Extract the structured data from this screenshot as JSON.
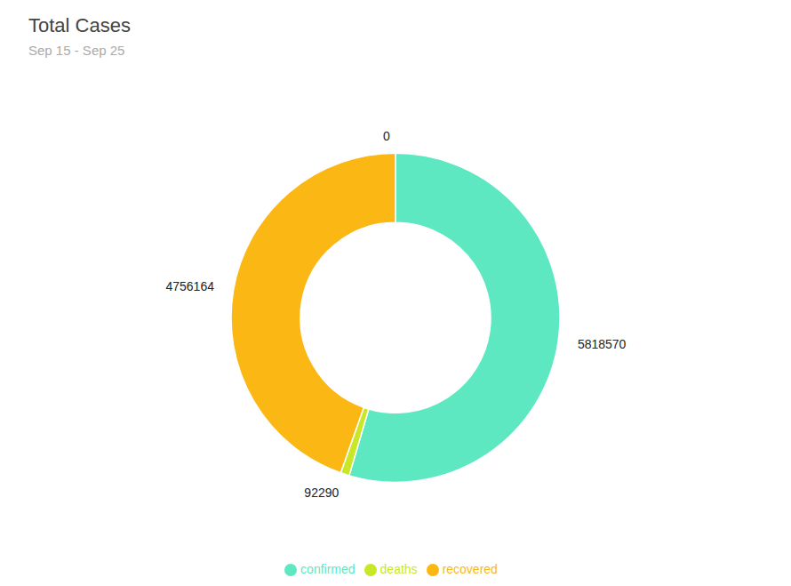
{
  "chart_data": {
    "type": "donut",
    "title": "Total Cases",
    "subtitle": "Sep 15 - Sep 25",
    "categories": [
      "confirmed",
      "deaths",
      "recovered"
    ],
    "values": [
      5818570,
      92290,
      4756164
    ],
    "colors": [
      "#5de8c1",
      "#c8e827",
      "#fbb714"
    ],
    "data_labels": true,
    "annotations": [
      "0"
    ],
    "legend": "bottom"
  }
}
